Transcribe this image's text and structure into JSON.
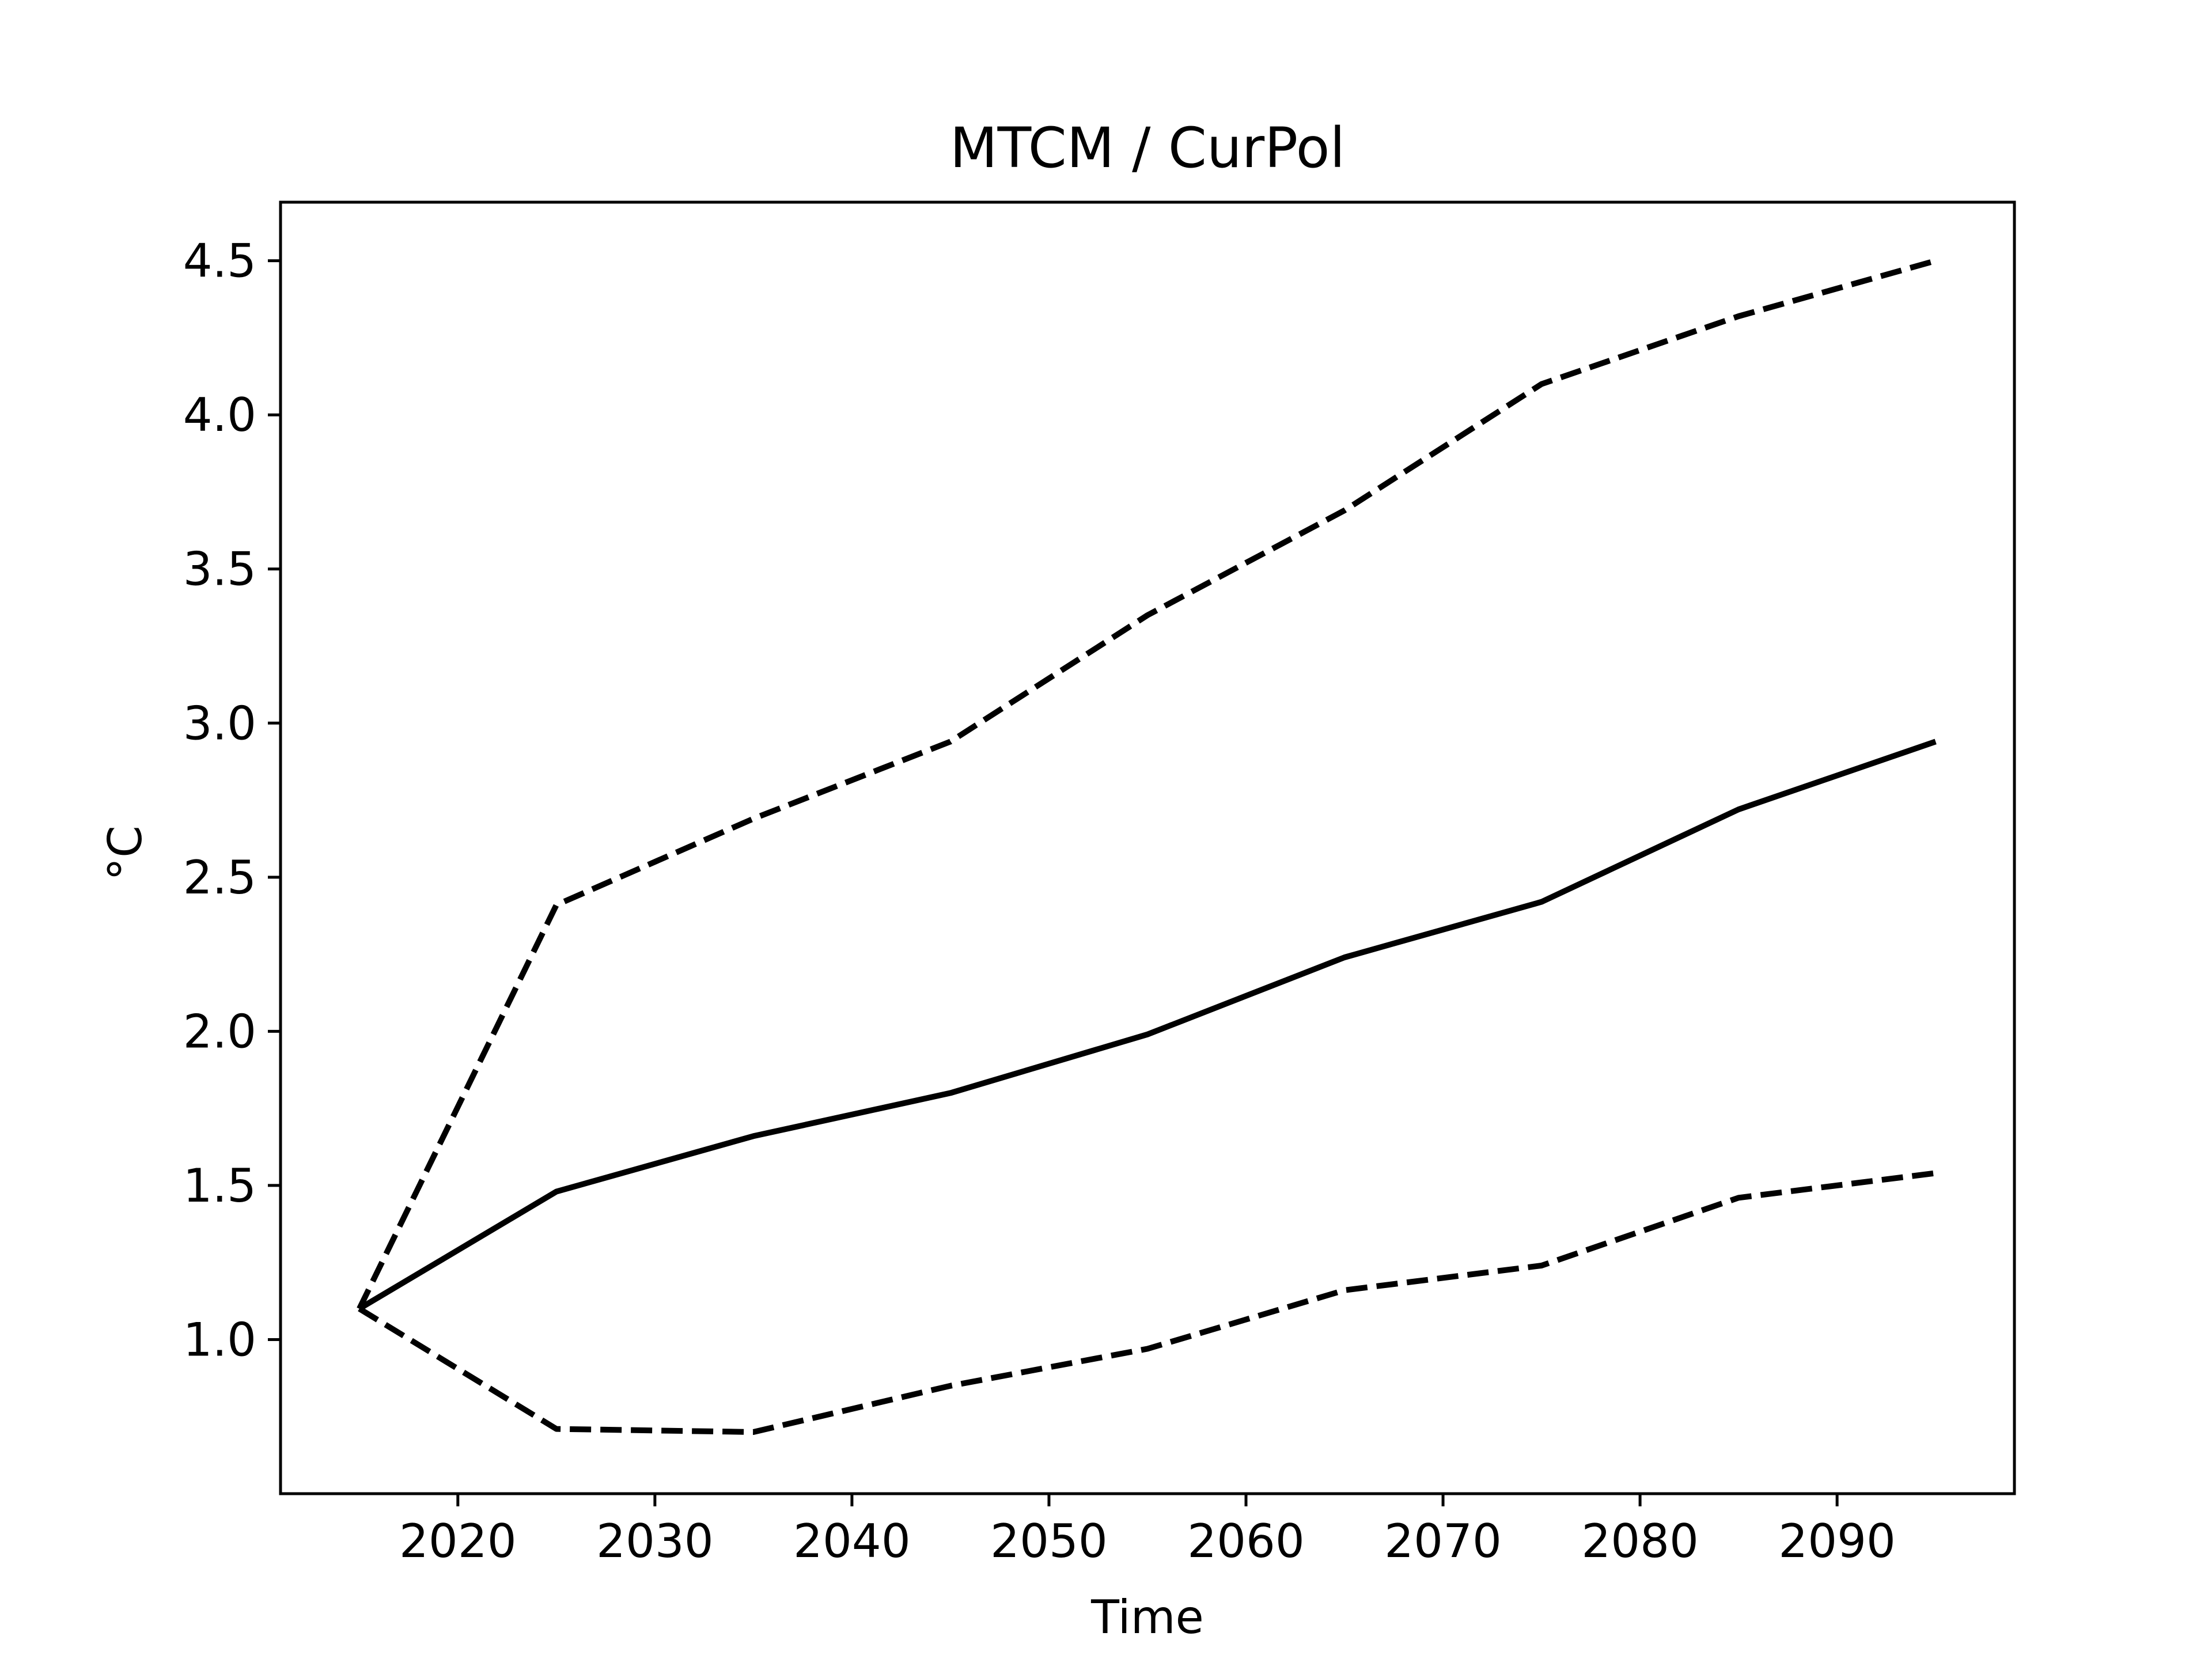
{
  "chart_data": {
    "type": "line",
    "title": "MTCM / CurPol",
    "xlabel": "Time",
    "ylabel": "°C",
    "xlim": [
      2011,
      2099
    ],
    "ylim": [
      0.5,
      4.69
    ],
    "xticks": [
      2020,
      2030,
      2040,
      2050,
      2060,
      2070,
      2080,
      2090
    ],
    "yticks": [
      1.0,
      1.5,
      2.0,
      2.5,
      3.0,
      3.5,
      4.0,
      4.5
    ],
    "grid": false,
    "x": [
      2015,
      2025,
      2035,
      2045,
      2055,
      2065,
      2075,
      2085,
      2095
    ],
    "series": [
      {
        "style": "dashed",
        "color": "#000000",
        "values": [
          1.1,
          2.41,
          2.69,
          2.94,
          3.35,
          3.69,
          4.1,
          4.32,
          4.5
        ]
      },
      {
        "style": "solid",
        "color": "#000000",
        "values": [
          1.1,
          1.48,
          1.66,
          1.8,
          1.99,
          2.24,
          2.42,
          2.72,
          2.94
        ]
      },
      {
        "style": "dashed",
        "color": "#000000",
        "values": [
          1.1,
          0.71,
          0.7,
          0.85,
          0.97,
          1.16,
          1.24,
          1.46,
          1.54
        ]
      }
    ]
  }
}
